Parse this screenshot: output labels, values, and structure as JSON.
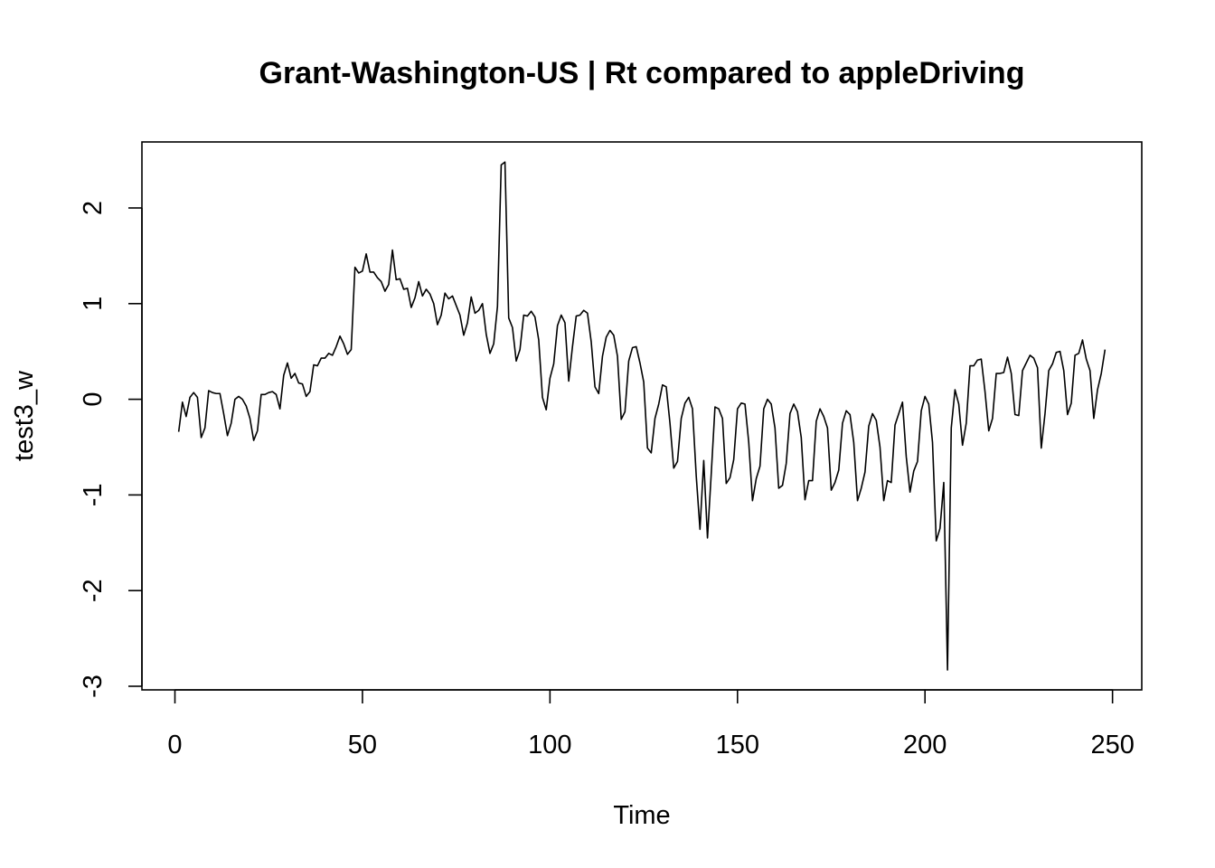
{
  "chart_data": {
    "type": "line",
    "title": "Grant-Washington-US | Rt compared to appleDriving",
    "xlabel": "Time",
    "ylabel": "test3_w",
    "xlim": [
      -8.8,
      257.8
    ],
    "ylim": [
      -3.0,
      2.5
    ],
    "xticks": [
      0,
      50,
      100,
      150,
      200,
      250
    ],
    "yticks": [
      -3,
      -2,
      -1,
      0,
      1,
      2
    ],
    "xtick_labels": [
      "0",
      "50",
      "100",
      "150",
      "200",
      "250"
    ],
    "ytick_labels": [
      "-3",
      "-2",
      "-1",
      "0",
      "1",
      "2"
    ],
    "grid": false,
    "line_color": "#000000",
    "series": [
      {
        "x_start": 1,
        "values": [
          -0.34,
          -0.03,
          -0.18,
          0.02,
          0.07,
          0.02,
          -0.4,
          -0.3,
          0.09,
          0.07,
          0.06,
          0.06,
          -0.15,
          -0.38,
          -0.25,
          0.0,
          0.03,
          0.0,
          -0.07,
          -0.2,
          -0.43,
          -0.33,
          0.05,
          0.05,
          0.07,
          0.08,
          0.05,
          -0.1,
          0.25,
          0.38,
          0.22,
          0.27,
          0.17,
          0.16,
          0.03,
          0.08,
          0.36,
          0.35,
          0.43,
          0.43,
          0.48,
          0.46,
          0.55,
          0.66,
          0.58,
          0.47,
          0.52,
          1.38,
          1.32,
          1.34,
          1.52,
          1.33,
          1.33,
          1.27,
          1.23,
          1.13,
          1.2,
          1.56,
          1.25,
          1.26,
          1.15,
          1.16,
          0.96,
          1.06,
          1.23,
          1.08,
          1.15,
          1.1,
          1.0,
          0.78,
          0.88,
          1.11,
          1.05,
          1.08,
          0.98,
          0.88,
          0.67,
          0.8,
          1.07,
          0.9,
          0.93,
          1.0,
          0.68,
          0.48,
          0.58,
          0.97,
          2.45,
          2.48,
          0.85,
          0.75,
          0.4,
          0.52,
          0.88,
          0.87,
          0.92,
          0.86,
          0.62,
          0.02,
          -0.11,
          0.22,
          0.37,
          0.77,
          0.88,
          0.8,
          0.19,
          0.55,
          0.87,
          0.88,
          0.93,
          0.9,
          0.6,
          0.13,
          0.06,
          0.45,
          0.65,
          0.72,
          0.67,
          0.45,
          -0.21,
          -0.13,
          0.4,
          0.54,
          0.55,
          0.38,
          0.18,
          -0.51,
          -0.56,
          -0.2,
          -0.05,
          0.15,
          0.13,
          -0.25,
          -0.72,
          -0.65,
          -0.2,
          -0.04,
          0.02,
          -0.1,
          -0.8,
          -1.36,
          -0.64,
          -1.45,
          -0.78,
          -0.08,
          -0.1,
          -0.2,
          -0.88,
          -0.82,
          -0.63,
          -0.1,
          -0.04,
          -0.05,
          -0.45,
          -1.06,
          -0.83,
          -0.7,
          -0.1,
          0.0,
          -0.05,
          -0.3,
          -0.93,
          -0.9,
          -0.67,
          -0.15,
          -0.05,
          -0.13,
          -0.4,
          -1.05,
          -0.85,
          -0.85,
          -0.23,
          -0.1,
          -0.18,
          -0.3,
          -0.95,
          -0.87,
          -0.74,
          -0.25,
          -0.12,
          -0.16,
          -0.45,
          -1.06,
          -0.93,
          -0.76,
          -0.28,
          -0.15,
          -0.22,
          -0.5,
          -1.06,
          -0.85,
          -0.87,
          -0.27,
          -0.15,
          -0.03,
          -0.6,
          -0.97,
          -0.75,
          -0.65,
          -0.12,
          0.03,
          -0.05,
          -0.45,
          -1.48,
          -1.35,
          -0.87,
          -2.83,
          -0.3,
          0.1,
          -0.05,
          -0.48,
          -0.25,
          0.35,
          0.35,
          0.41,
          0.42,
          0.08,
          -0.33,
          -0.2,
          0.27,
          0.27,
          0.28,
          0.44,
          0.27,
          -0.16,
          -0.17,
          0.3,
          0.38,
          0.46,
          0.43,
          0.33,
          -0.51,
          -0.15,
          0.3,
          0.37,
          0.49,
          0.5,
          0.3,
          -0.16,
          -0.04,
          0.46,
          0.48,
          0.62,
          0.42,
          0.3,
          -0.2,
          0.1,
          0.27,
          0.52
        ]
      }
    ]
  }
}
